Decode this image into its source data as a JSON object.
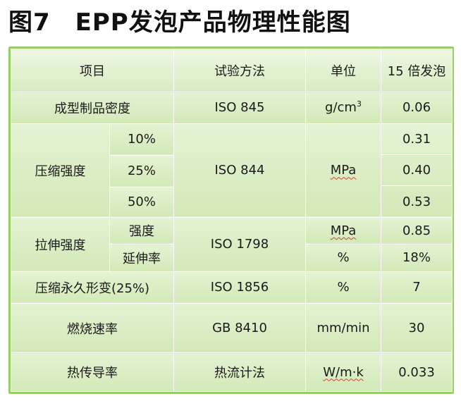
{
  "title": "图7　EPP发泡产品物理性能图",
  "header": {
    "item": "项目",
    "method": "试验方法",
    "unit": "单位",
    "value": "15 倍发泡"
  },
  "rows": {
    "density": {
      "item": "成型制品密度",
      "method": "ISO 845",
      "unit_base": "g/cm",
      "unit_sup": "3",
      "value": "0.06"
    },
    "compress": {
      "item": "压缩强度",
      "sub": [
        "10%",
        "25%",
        "50%"
      ],
      "method": "ISO 844",
      "unit": "MPa",
      "values": [
        "0.31",
        "0.40",
        "0.53"
      ]
    },
    "tensile": {
      "item": "拉伸强度",
      "sub": [
        "强度",
        "延伸率"
      ],
      "method": "ISO 1798",
      "units": [
        "MPa",
        "%"
      ],
      "values": [
        "0.85",
        "18%"
      ]
    },
    "set": {
      "item": "压缩永久形变(25%)",
      "method": "ISO 1856",
      "unit": "%",
      "value": "7"
    },
    "burn": {
      "item": "燃烧速率",
      "method": "GB 8410",
      "unit": "mm/min",
      "value": "30"
    },
    "thermal": {
      "item": "热传导率",
      "method": "热流计法",
      "unit": "W/m·k",
      "value": "0.033"
    }
  },
  "colors": {
    "frame": "#9acd6a",
    "cell": "#d9edc3",
    "unit_underline": "#d93a3a"
  }
}
